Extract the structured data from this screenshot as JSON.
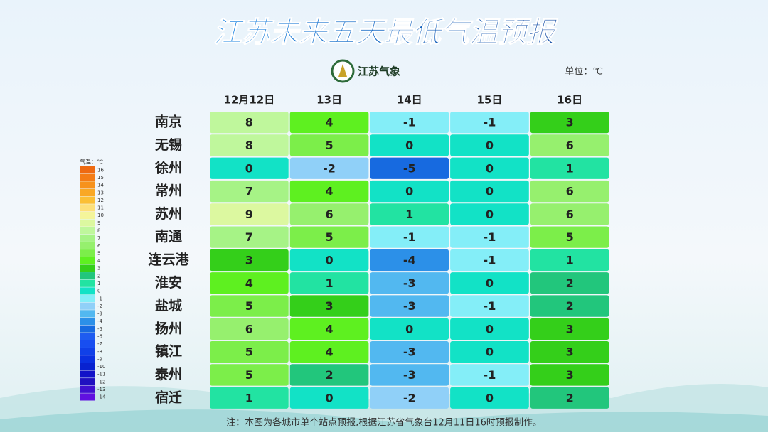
{
  "chart_data": {
    "type": "heatmap",
    "title": "江苏未来五天最低气温预报",
    "source": "江苏气象",
    "unit": "单位：℃",
    "note": "注：本图为各城市单个站点预报,根据江苏省气象台12月11日16时预报制作。",
    "x": [
      "12月12日",
      "13日",
      "14日",
      "15日",
      "16日"
    ],
    "y": [
      "南京",
      "无锡",
      "徐州",
      "常州",
      "苏州",
      "南通",
      "连云港",
      "淮安",
      "盐城",
      "扬州",
      "镇江",
      "泰州",
      "宿迁"
    ],
    "values": [
      [
        8,
        4,
        -1,
        -1,
        3
      ],
      [
        8,
        5,
        0,
        0,
        6
      ],
      [
        0,
        -2,
        -5,
        0,
        1
      ],
      [
        7,
        4,
        0,
        0,
        6
      ],
      [
        9,
        6,
        1,
        0,
        6
      ],
      [
        7,
        5,
        -1,
        -1,
        5
      ],
      [
        3,
        0,
        -4,
        -1,
        1
      ],
      [
        4,
        1,
        -3,
        0,
        2
      ],
      [
        5,
        3,
        -3,
        -1,
        2
      ],
      [
        6,
        4,
        0,
        0,
        3
      ],
      [
        5,
        4,
        -3,
        0,
        3
      ],
      [
        5,
        2,
        -3,
        -1,
        3
      ],
      [
        1,
        0,
        -2,
        0,
        2
      ]
    ],
    "colorbar": {
      "title": "气温：℃",
      "values": [
        16,
        15,
        14,
        13,
        12,
        11,
        10,
        9,
        8,
        7,
        6,
        5,
        4,
        3,
        2,
        1,
        0,
        -1,
        -2,
        -3,
        -4,
        -5,
        -6,
        -7,
        -8,
        -9,
        -10,
        -11,
        -12,
        -13,
        -14
      ],
      "colors": [
        "#ee6a12",
        "#f47c16",
        "#f7921c",
        "#f9a825",
        "#fbbf35",
        "#fde07a",
        "#f4f59a",
        "#dcf8a0",
        "#bff79c",
        "#a6f386",
        "#96f06e",
        "#7cee4a",
        "#5ef020",
        "#34cf1a",
        "#22c67c",
        "#22e3a2",
        "#12e2c6",
        "#84eef8",
        "#90d0f8",
        "#52b8f0",
        "#2c90e8",
        "#176ae0",
        "#1e5cf0",
        "#184ef0",
        "#1040e8",
        "#0a30e0",
        "#0822d0",
        "#1212c8",
        "#2010c0",
        "#4010d0",
        "#6010e0"
      ]
    }
  }
}
